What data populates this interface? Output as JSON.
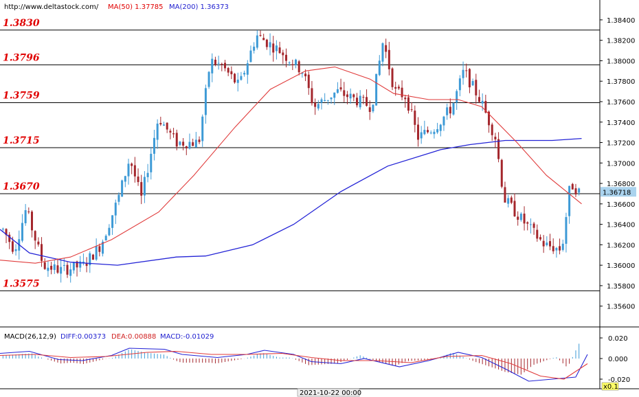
{
  "header": {
    "url": "http://www.deltastock.com/",
    "ma50": "MA(50)  1.37785",
    "ma200": "MA(200)  1.36373"
  },
  "macd_header": {
    "name": "MACD(26,12,9)",
    "diff": "DIFF:0.00373",
    "dea": "DEA:0.00888",
    "macd": "MACD:-0.01029"
  },
  "bottom": {
    "date": "2021-10-22 00:00",
    "zoom": "x0.1"
  },
  "colors": {
    "bull": "#3d9ad6",
    "bear": "#a4262c",
    "ma50": "#e03a3a",
    "ma200": "#2323d6",
    "level_text": "#e00000",
    "price_box": "#aad3ee"
  },
  "chart_data": [
    {
      "type": "candlestick",
      "title": "",
      "ylim": [
        1.3545,
        1.3848
      ],
      "y_ticks": [
        "1.38400",
        "1.38200",
        "1.38000",
        "1.37800",
        "1.37600",
        "1.37400",
        "1.37200",
        "1.37000",
        "1.36800",
        "1.36600",
        "1.36400",
        "1.36200",
        "1.36000",
        "1.35800",
        "1.35600"
      ],
      "last_price": "1.36718",
      "levels": [
        "1.3830",
        "1.3796",
        "1.3759",
        "1.3715",
        "1.3670",
        "1.3575"
      ],
      "ma50_points": [
        [
          0,
          1.3605
        ],
        [
          0.06,
          1.3602
        ],
        [
          0.12,
          1.3608
        ],
        [
          0.19,
          1.3625
        ],
        [
          0.27,
          1.3652
        ],
        [
          0.33,
          1.3688
        ],
        [
          0.4,
          1.3735
        ],
        [
          0.46,
          1.3772
        ],
        [
          0.52,
          1.379
        ],
        [
          0.57,
          1.3794
        ],
        [
          0.63,
          1.3782
        ],
        [
          0.67,
          1.3768
        ],
        [
          0.73,
          1.3762
        ],
        [
          0.78,
          1.3762
        ],
        [
          0.82,
          1.3755
        ],
        [
          0.88,
          1.372
        ],
        [
          0.93,
          1.3688
        ],
        [
          0.99,
          1.366
        ]
      ],
      "ma200_points": [
        [
          0,
          1.3635
        ],
        [
          0.05,
          1.3612
        ],
        [
          0.12,
          1.3603
        ],
        [
          0.2,
          1.36
        ],
        [
          0.3,
          1.3608
        ],
        [
          0.35,
          1.3609
        ],
        [
          0.43,
          1.362
        ],
        [
          0.5,
          1.364
        ],
        [
          0.58,
          1.3672
        ],
        [
          0.66,
          1.3697
        ],
        [
          0.75,
          1.3713
        ],
        [
          0.8,
          1.3718
        ],
        [
          0.86,
          1.3722
        ],
        [
          0.94,
          1.3722
        ],
        [
          0.99,
          1.3724
        ]
      ],
      "close_path": [
        [
          0,
          1.3635
        ],
        [
          0.02,
          1.3615
        ],
        [
          0.04,
          1.3655
        ],
        [
          0.07,
          1.36
        ],
        [
          0.1,
          1.3595
        ],
        [
          0.14,
          1.36
        ],
        [
          0.17,
          1.362
        ],
        [
          0.2,
          1.3665
        ],
        [
          0.22,
          1.3705
        ],
        [
          0.24,
          1.3665
        ],
        [
          0.27,
          1.3745
        ],
        [
          0.3,
          1.372
        ],
        [
          0.34,
          1.372
        ],
        [
          0.36,
          1.38
        ],
        [
          0.38,
          1.3795
        ],
        [
          0.41,
          1.3775
        ],
        [
          0.44,
          1.3825
        ],
        [
          0.48,
          1.381
        ],
        [
          0.52,
          1.379
        ],
        [
          0.54,
          1.3755
        ],
        [
          0.58,
          1.377
        ],
        [
          0.62,
          1.376
        ],
        [
          0.64,
          1.3755
        ],
        [
          0.66,
          1.382
        ],
        [
          0.68,
          1.377
        ],
        [
          0.7,
          1.3765
        ],
        [
          0.72,
          1.3725
        ],
        [
          0.75,
          1.3735
        ],
        [
          0.78,
          1.3755
        ],
        [
          0.8,
          1.379
        ],
        [
          0.83,
          1.376
        ],
        [
          0.855,
          1.3725
        ],
        [
          0.87,
          1.3665
        ],
        [
          0.9,
          1.3645
        ],
        [
          0.94,
          1.362
        ],
        [
          0.97,
          1.3615
        ],
        [
          0.985,
          1.368
        ],
        [
          1.0,
          1.3672
        ]
      ],
      "candle_count": 180
    },
    {
      "type": "histogram",
      "title": "MACD(26,12,9)",
      "ylim": [
        -0.028,
        0.028
      ],
      "y_ticks": [
        "0.020",
        "0.000",
        "-0.020"
      ],
      "diff_points": [
        [
          0,
          0.005
        ],
        [
          0.05,
          0.007
        ],
        [
          0.1,
          -0.001
        ],
        [
          0.14,
          -0.002
        ],
        [
          0.19,
          0.003
        ],
        [
          0.22,
          0.01
        ],
        [
          0.28,
          0.009
        ],
        [
          0.31,
          0.004
        ],
        [
          0.37,
          0.001
        ],
        [
          0.42,
          0.004
        ],
        [
          0.45,
          0.008
        ],
        [
          0.5,
          0.004
        ],
        [
          0.53,
          -0.003
        ],
        [
          0.58,
          -0.005
        ],
        [
          0.62,
          0.0
        ],
        [
          0.68,
          -0.008
        ],
        [
          0.73,
          -0.002
        ],
        [
          0.78,
          0.006
        ],
        [
          0.82,
          0.001
        ],
        [
          0.86,
          -0.01
        ],
        [
          0.9,
          -0.022
        ],
        [
          0.94,
          -0.02
        ],
        [
          0.98,
          -0.018
        ],
        [
          1.0,
          0.004
        ]
      ],
      "dea_points": [
        [
          0,
          0.003
        ],
        [
          0.06,
          0.004
        ],
        [
          0.12,
          0.001
        ],
        [
          0.18,
          0.002
        ],
        [
          0.25,
          0.006
        ],
        [
          0.3,
          0.007
        ],
        [
          0.36,
          0.004
        ],
        [
          0.42,
          0.004
        ],
        [
          0.48,
          0.005
        ],
        [
          0.53,
          0.001
        ],
        [
          0.58,
          -0.002
        ],
        [
          0.64,
          -0.002
        ],
        [
          0.7,
          -0.004
        ],
        [
          0.76,
          0.002
        ],
        [
          0.82,
          0.003
        ],
        [
          0.87,
          -0.005
        ],
        [
          0.92,
          -0.017
        ],
        [
          0.96,
          -0.02
        ],
        [
          1.0,
          -0.005
        ]
      ]
    }
  ]
}
